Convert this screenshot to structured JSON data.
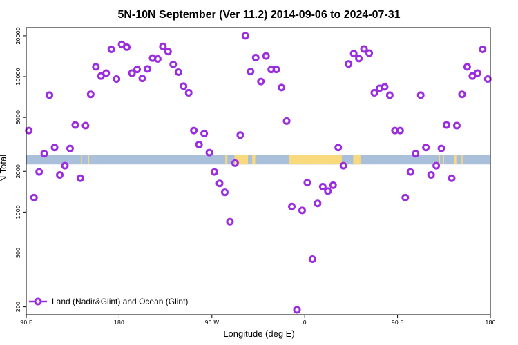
{
  "chart_data": {
    "type": "scatter",
    "title": "5N-10N September (Ver 11.2)   2014-09-06 to 2024-07-31",
    "xlabel": "Longitude (deg E)",
    "ylabel": "N Total",
    "y_scale": "log",
    "ylim": [
      175,
      23000
    ],
    "xlim": [
      90,
      540
    ],
    "x_ticks": [
      {
        "value": 90,
        "label": "90 E"
      },
      {
        "value": 180,
        "label": "180"
      },
      {
        "value": 270,
        "label": "90 W"
      },
      {
        "value": 360,
        "label": "0"
      },
      {
        "value": 450,
        "label": "90 E"
      },
      {
        "value": 540,
        "label": "180"
      }
    ],
    "y_ticks": [
      {
        "value": 200,
        "label": "200"
      },
      {
        "value": 500,
        "label": "500"
      },
      {
        "value": 1000,
        "label": "1000"
      },
      {
        "value": 2000,
        "label": "2000"
      },
      {
        "value": 5000,
        "label": "5000"
      },
      {
        "value": 10000,
        "label": "10000"
      },
      {
        "value": 20000,
        "label": "20000"
      }
    ],
    "grid": false,
    "legend_position": "bottom-left",
    "background_band": {
      "label": "",
      "ylim": [
        2250,
        2650
      ],
      "ocean_color": "#a9bfda",
      "land_color": "#f9d97e",
      "land_x_ranges": [
        [
          143,
          144
        ],
        [
          150,
          151
        ],
        [
          283,
          285
        ],
        [
          292,
          305
        ],
        [
          309,
          312
        ],
        [
          345,
          396
        ],
        [
          407,
          414
        ],
        [
          490,
          491
        ],
        [
          494,
          495
        ],
        [
          505,
          507
        ],
        [
          512,
          513
        ]
      ]
    },
    "series": [
      {
        "name": "Land (Nadir&Glint) and Ocean (Glint)",
        "color": "#9b2de0",
        "x": [
          92.5,
          97.5,
          102.5,
          107.5,
          112.5,
          117.5,
          122.5,
          127.5,
          132.5,
          137.5,
          142.5,
          147.5,
          152.5,
          157.5,
          162.5,
          167.5,
          172.5,
          177.5,
          182.5,
          187.5,
          192.5,
          197.5,
          202.5,
          207.5,
          212.5,
          217.5,
          222.5,
          227.5,
          232.5,
          237.5,
          242.5,
          247.5,
          252.5,
          257.5,
          262.5,
          267.5,
          272.5,
          277.5,
          282.5,
          287.5,
          292.5,
          297.5,
          302.5,
          307.5,
          312.5,
          317.5,
          322.5,
          327.5,
          332.5,
          337.5,
          342.5,
          347.5,
          352.5,
          357.5,
          362.5,
          367.5,
          372.5,
          377.5,
          382.5,
          387.5,
          392.5,
          397.5,
          402.5,
          407.5,
          412.5,
          417.5,
          422.5,
          427.5,
          432.5,
          437.5,
          442.5,
          447.5,
          452.5,
          457.5,
          462.5,
          467.5,
          472.5,
          477.5,
          482.5,
          487.5,
          492.5,
          497.5,
          502.5,
          507.5,
          512.5,
          517.5,
          522.5,
          527.5,
          532.5,
          537.5
        ],
        "y": [
          4000,
          1280,
          1980,
          2700,
          7300,
          3000,
          1880,
          2200,
          2950,
          4400,
          1780,
          4350,
          7400,
          11800,
          10100,
          10600,
          15900,
          9600,
          17300,
          16500,
          10600,
          11300,
          9700,
          11400,
          13700,
          13500,
          16700,
          15300,
          12300,
          10800,
          8500,
          7600,
          4000,
          3150,
          3800,
          2750,
          1980,
          1630,
          1400,
          850,
          2300,
          3700,
          20000,
          10900,
          13800,
          9200,
          14200,
          11300,
          11300,
          8300,
          4700,
          1100,
          190,
          1030,
          1650,
          450,
          1160,
          1540,
          1430,
          1580,
          3000,
          2200,
          12400,
          14800,
          13600,
          16000,
          14900,
          7600,
          8200,
          8400,
          7300,
          4000,
          4000,
          1280,
          1980,
          2700,
          7300,
          3000,
          1880,
          2200,
          2950,
          4400,
          1780,
          4350,
          7400,
          11800,
          10100,
          10600,
          15900,
          9600
        ]
      }
    ]
  }
}
